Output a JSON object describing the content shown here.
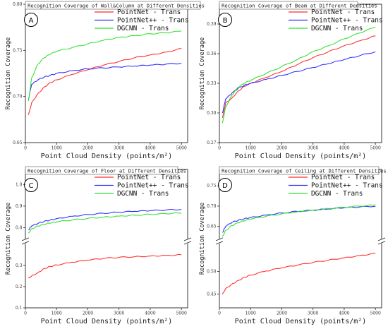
{
  "chart_data": [
    {
      "type": "line",
      "badge": "A",
      "title": "Recognition Coverage of Wall&Column at Different Densities",
      "xlabel": "Point Cloud Density (points/m²)",
      "ylabel": "Recognition Coverage",
      "xlim": [
        0,
        5200
      ],
      "ylim": [
        0.65,
        0.8
      ],
      "xticks": [
        0,
        1000,
        2000,
        3000,
        4000,
        5000
      ],
      "yticks": [
        0.65,
        0.7,
        0.75,
        0.8
      ],
      "ytick_labels": [
        "0.65",
        "0.70",
        "0.75",
        "0.80"
      ],
      "legend": "top-right",
      "series": [
        {
          "name": "PointNet - Trans",
          "color": "#ff2b2b",
          "x": [
            100,
            200,
            400,
            600,
            800,
            1000,
            1500,
            2000,
            2500,
            3000,
            3500,
            4000,
            4500,
            5000
          ],
          "y": [
            0.68,
            0.693,
            0.703,
            0.71,
            0.715,
            0.718,
            0.724,
            0.729,
            0.734,
            0.738,
            0.742,
            0.745,
            0.748,
            0.752
          ]
        },
        {
          "name": "PointNet++ - Trans",
          "color": "#2b2bff",
          "x": [
            100,
            200,
            400,
            600,
            800,
            1000,
            1500,
            2000,
            2500,
            3000,
            3500,
            4000,
            4500,
            5000
          ],
          "y": [
            0.697,
            0.713,
            0.718,
            0.721,
            0.723,
            0.725,
            0.728,
            0.73,
            0.731,
            0.732,
            0.733,
            0.734,
            0.735,
            0.736
          ]
        },
        {
          "name": "DGCNN - Trans",
          "color": "#2ee02e",
          "x": [
            100,
            200,
            400,
            600,
            800,
            1000,
            1500,
            2000,
            2500,
            3000,
            3500,
            4000,
            4500,
            5000
          ],
          "y": [
            0.695,
            0.72,
            0.735,
            0.742,
            0.746,
            0.749,
            0.753,
            0.757,
            0.761,
            0.764,
            0.766,
            0.768,
            0.769,
            0.771
          ]
        }
      ]
    },
    {
      "type": "line",
      "badge": "B",
      "title": "Recognition Coverage of Beam at Different Densities",
      "xlabel": "Point Cloud Density (points/m²)",
      "ylabel": "Recognition Coverage",
      "xlim": [
        0,
        5200
      ],
      "ylim": [
        0.27,
        0.41
      ],
      "xticks": [
        0,
        1000,
        2000,
        3000,
        4000,
        5000
      ],
      "yticks": [
        0.27,
        0.3,
        0.33,
        0.36,
        0.39
      ],
      "ytick_labels": [
        "0.27",
        "0.30",
        "0.33",
        "0.36",
        "0.39"
      ],
      "legend": "top-right",
      "series": [
        {
          "name": "PointNet - Trans",
          "color": "#ff2b2b",
          "x": [
            100,
            200,
            400,
            600,
            800,
            1000,
            1500,
            2000,
            2500,
            3000,
            3500,
            4000,
            4500,
            5000
          ],
          "y": [
            0.295,
            0.31,
            0.315,
            0.322,
            0.327,
            0.33,
            0.336,
            0.342,
            0.349,
            0.356,
            0.362,
            0.368,
            0.373,
            0.378
          ]
        },
        {
          "name": "PointNet++ - Trans",
          "color": "#2b2bff",
          "x": [
            100,
            200,
            400,
            600,
            800,
            1000,
            1500,
            2000,
            2500,
            3000,
            3500,
            4000,
            4500,
            5000
          ],
          "y": [
            0.3,
            0.314,
            0.32,
            0.325,
            0.328,
            0.33,
            0.334,
            0.338,
            0.342,
            0.346,
            0.35,
            0.354,
            0.358,
            0.362
          ]
        },
        {
          "name": "DGCNN - Trans",
          "color": "#2ee02e",
          "x": [
            100,
            200,
            400,
            600,
            800,
            1000,
            1500,
            2000,
            2500,
            3000,
            3500,
            4000,
            4500,
            5000
          ],
          "y": [
            0.29,
            0.306,
            0.318,
            0.326,
            0.33,
            0.333,
            0.34,
            0.347,
            0.354,
            0.362,
            0.368,
            0.375,
            0.381,
            0.387
          ]
        }
      ]
    },
    {
      "type": "line",
      "badge": "C",
      "title": "Recognition Coverage of Floor at Different Densities",
      "xlabel": "Point Cloud Density (points/m²)",
      "ylabel": "Recognition Coverage",
      "xlim": [
        0,
        5200
      ],
      "broken_axis": true,
      "ylim_upper": [
        0.75,
        1.05
      ],
      "yticks_upper": [
        0.8,
        0.9,
        1.0
      ],
      "ytick_labels_upper": [
        "0.8",
        "0.9",
        "1.0"
      ],
      "ylim_lower": [
        0.1,
        0.4
      ],
      "yticks_lower": [
        0.1,
        0.2,
        0.3
      ],
      "ytick_labels_lower": [
        "0.1",
        "0.2",
        "0.3"
      ],
      "xticks": [
        0,
        1000,
        2000,
        3000,
        4000,
        5000
      ],
      "legend": "top-right",
      "series": [
        {
          "name": "PointNet - Trans",
          "color": "#ff2b2b",
          "x": [
            100,
            200,
            400,
            600,
            800,
            1000,
            1500,
            2000,
            2500,
            3000,
            3500,
            4000,
            4500,
            5000
          ],
          "y": [
            0.24,
            0.25,
            0.265,
            0.285,
            0.295,
            0.302,
            0.315,
            0.325,
            0.333,
            0.338,
            0.341,
            0.344,
            0.347,
            0.35
          ]
        },
        {
          "name": "PointNet++ - Trans",
          "color": "#2b2bff",
          "x": [
            100,
            200,
            400,
            600,
            800,
            1000,
            1500,
            2000,
            2500,
            3000,
            3500,
            4000,
            4500,
            5000
          ],
          "y": [
            0.79,
            0.808,
            0.82,
            0.829,
            0.836,
            0.842,
            0.853,
            0.861,
            0.867,
            0.872,
            0.876,
            0.879,
            0.882,
            0.885
          ]
        },
        {
          "name": "DGCNN - Trans",
          "color": "#2ee02e",
          "x": [
            100,
            200,
            400,
            600,
            800,
            1000,
            1500,
            2000,
            2500,
            3000,
            3500,
            4000,
            4500,
            5000
          ],
          "y": [
            0.775,
            0.795,
            0.808,
            0.816,
            0.822,
            0.827,
            0.836,
            0.843,
            0.849,
            0.854,
            0.858,
            0.862,
            0.865,
            0.868
          ]
        }
      ]
    },
    {
      "type": "line",
      "badge": "D",
      "title": "Recognition Coverage of Ceiling at Different Densities",
      "xlabel": "Point Cloud Density (points/m²)",
      "ylabel": "Recognition Coverage",
      "xlim": [
        0,
        5200
      ],
      "broken_axis": true,
      "ylim_upper": [
        0.62,
        0.78
      ],
      "yticks_upper": [
        0.65,
        0.7,
        0.75
      ],
      "ytick_labels_upper": [
        "0.65",
        "0.70",
        "0.75"
      ],
      "ylim_lower": [
        0.42,
        0.56
      ],
      "yticks_lower": [
        0.45,
        0.5
      ],
      "ytick_labels_lower": [
        "0.45",
        "0.50"
      ],
      "xticks": [
        0,
        1000,
        2000,
        3000,
        4000,
        5000
      ],
      "legend": "top-right",
      "series": [
        {
          "name": "PointNet - Trans",
          "color": "#ff2b2b",
          "x": [
            100,
            200,
            400,
            600,
            800,
            1000,
            1500,
            2000,
            2500,
            3000,
            3500,
            4000,
            4500,
            5000
          ],
          "y": [
            0.45,
            0.462,
            0.472,
            0.48,
            0.487,
            0.492,
            0.501,
            0.508,
            0.514,
            0.52,
            0.525,
            0.53,
            0.535,
            0.54
          ]
        },
        {
          "name": "PointNet++ - Trans",
          "color": "#2b2bff",
          "x": [
            100,
            200,
            400,
            600,
            800,
            1000,
            1500,
            2000,
            2500,
            3000,
            3500,
            4000,
            4500,
            5000
          ],
          "y": [
            0.635,
            0.65,
            0.66,
            0.665,
            0.669,
            0.672,
            0.678,
            0.683,
            0.687,
            0.69,
            0.693,
            0.696,
            0.698,
            0.7
          ]
        },
        {
          "name": "DGCNN - Trans",
          "color": "#2ee02e",
          "x": [
            100,
            200,
            400,
            600,
            800,
            1000,
            1500,
            2000,
            2500,
            3000,
            3500,
            4000,
            4500,
            5000
          ],
          "y": [
            0.625,
            0.64,
            0.652,
            0.659,
            0.664,
            0.668,
            0.675,
            0.681,
            0.686,
            0.69,
            0.694,
            0.697,
            0.7,
            0.703
          ]
        }
      ]
    }
  ]
}
